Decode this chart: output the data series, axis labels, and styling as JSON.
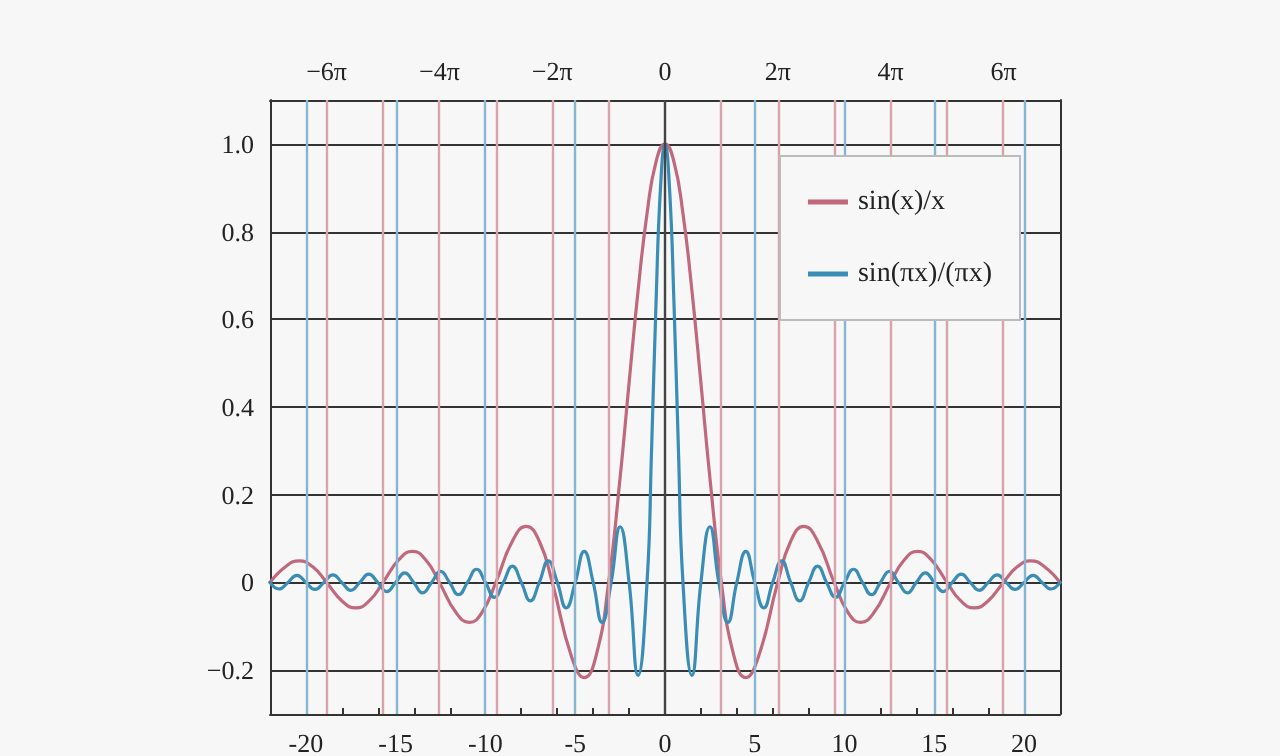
{
  "chart_data": {
    "type": "line",
    "xlim": [
      -22,
      22
    ],
    "ylim": [
      -0.3,
      1.1
    ],
    "xticks": [
      -20,
      -15,
      -10,
      -5,
      0,
      5,
      10,
      15,
      20
    ],
    "yticks": [
      {
        "value": -0.2,
        "label": "−0.2"
      },
      {
        "value": 0,
        "label": "0"
      },
      {
        "value": 0.2,
        "label": "0.2"
      },
      {
        "value": 0.4,
        "label": "0.4"
      },
      {
        "value": 0.6,
        "label": "0.6"
      },
      {
        "value": 0.8,
        "label": "0.8"
      },
      {
        "value": 1,
        "label": "1.0"
      }
    ],
    "x2lim": [
      -22,
      22
    ],
    "x2ticks": [
      {
        "value": -18.85,
        "label": "−6π"
      },
      {
        "value": -12.566,
        "label": "−4π"
      },
      {
        "value": -6.283,
        "label": "−2π"
      },
      {
        "value": 0,
        "label": "0"
      },
      {
        "value": 6.283,
        "label": "2π"
      },
      {
        "value": 12.566,
        "label": "4π"
      },
      {
        "value": 18.85,
        "label": "6π"
      }
    ],
    "grid": "y",
    "legend": "top right",
    "marker": "none",
    "line_style": "solid",
    "series": [
      {
        "name": "sin(x)/x",
        "color": "#c0687c",
        "x": [
          -22,
          -21.1,
          -20.37,
          -19.6,
          -18.85,
          -17.95,
          -17.22,
          -16.45,
          -15.71,
          -14.8,
          -14.07,
          -13.3,
          -12.57,
          -11.6,
          -10.9,
          -10.2,
          -9.42,
          -8.5,
          -7.73,
          -7,
          -6.28,
          -5.2,
          -4.49,
          -3.8,
          -3.14,
          -2.5,
          -2,
          -1.5,
          -1,
          -0.5,
          0,
          0.5,
          1,
          1.5,
          2,
          2.5,
          3.14,
          3.8,
          4.49,
          5.2,
          6.28,
          7,
          7.73,
          8.5,
          9.42,
          10.2,
          10.9,
          11.6,
          12.57,
          13.3,
          14.07,
          14.8,
          15.71,
          16.45,
          17.22,
          17.95,
          18.85,
          19.6,
          20.37,
          21.1,
          22
        ],
        "values": [
          0,
          0.037,
          0.049,
          0.035,
          0,
          -0.044,
          -0.058,
          -0.041,
          0,
          0.053,
          0.071,
          0.05,
          0,
          -0.071,
          -0.091,
          -0.069,
          0,
          0.094,
          0.128,
          0.094,
          0,
          -0.17,
          -0.217,
          -0.161,
          0,
          0.239,
          0.455,
          0.665,
          0.841,
          0.959,
          1,
          0.959,
          0.841,
          0.665,
          0.455,
          0.239,
          0,
          -0.161,
          -0.217,
          -0.17,
          0,
          0.094,
          0.128,
          0.094,
          0,
          -0.069,
          -0.091,
          -0.071,
          0,
          0.05,
          0.071,
          0.053,
          0,
          -0.041,
          -0.058,
          -0.044,
          0,
          0.035,
          0.049,
          0.037,
          0
        ]
      },
      {
        "name": "sin(πx)/(πx)",
        "color": "#3a8db5",
        "x": [
          -22,
          -21.5,
          -21,
          -20.5,
          -20,
          -19.5,
          -19,
          -18.5,
          -18,
          -17.5,
          -17,
          -16.5,
          -16,
          -15.5,
          -15,
          -14.5,
          -14,
          -13.5,
          -13,
          -12.5,
          -12,
          -11.5,
          -11,
          -10.5,
          -10,
          -9.5,
          -9,
          -8.5,
          -8,
          -7.5,
          -7,
          -6.5,
          -6,
          -5.5,
          -5,
          -4.5,
          -4,
          -3.5,
          -3,
          -2.5,
          -2,
          -1.5,
          -1,
          -0.75,
          -0.5,
          -0.25,
          0,
          0.25,
          0.5,
          0.75,
          1,
          1.5,
          2,
          2.5,
          3,
          3.5,
          4,
          4.5,
          5,
          5.5,
          6,
          6.5,
          7,
          7.5,
          8,
          8.5,
          9,
          9.5,
          10,
          10.5,
          11,
          11.5,
          12,
          12.5,
          13,
          13.5,
          14,
          14.5,
          15,
          15.5,
          16,
          16.5,
          17,
          17.5,
          18,
          18.5,
          19,
          19.5,
          20,
          20.5,
          21,
          21.5,
          22
        ],
        "values": [
          0,
          -0.015,
          0,
          0.016,
          0,
          -0.016,
          0,
          0.017,
          0,
          -0.018,
          0,
          0.019,
          0,
          -0.021,
          0,
          0.022,
          0,
          -0.024,
          0,
          0.025,
          0,
          -0.028,
          0,
          0.03,
          0,
          -0.034,
          0,
          0.037,
          0,
          -0.042,
          0,
          0.049,
          0,
          -0.058,
          0,
          0.071,
          0,
          -0.091,
          0,
          0.127,
          0,
          -0.212,
          0,
          0.3,
          0.637,
          0.9,
          1,
          0.9,
          0.637,
          0.3,
          0,
          -0.212,
          0,
          0.127,
          0,
          -0.091,
          0,
          0.071,
          0,
          -0.058,
          0,
          0.049,
          0,
          -0.042,
          0,
          0.037,
          0,
          -0.034,
          0,
          0.03,
          0,
          -0.028,
          0,
          0.025,
          0,
          -0.024,
          0,
          0.022,
          0,
          -0.021,
          0,
          0.019,
          0,
          -0.018,
          0,
          0.017,
          0,
          -0.016,
          0,
          0.016,
          0,
          -0.015,
          0
        ]
      }
    ],
    "ref_lines": [
      {
        "axis": "x",
        "value": -18.85,
        "color": "#d9a3ad"
      },
      {
        "axis": "x",
        "value": -15.71,
        "color": "#d9a3ad"
      },
      {
        "axis": "x",
        "value": -12.566,
        "color": "#d9a3ad"
      },
      {
        "axis": "x",
        "value": -9.425,
        "color": "#d9a3ad"
      },
      {
        "axis": "x",
        "value": -6.283,
        "color": "#d9a3ad"
      },
      {
        "axis": "x",
        "value": -3.142,
        "color": "#d9a3ad"
      },
      {
        "axis": "x",
        "value": 3.142,
        "color": "#d9a3ad"
      },
      {
        "axis": "x",
        "value": 6.283,
        "color": "#d9a3ad"
      },
      {
        "axis": "x",
        "value": 9.425,
        "color": "#d9a3ad"
      },
      {
        "axis": "x",
        "value": 12.566,
        "color": "#d9a3ad"
      },
      {
        "axis": "x",
        "value": 15.71,
        "color": "#d9a3ad"
      },
      {
        "axis": "x",
        "value": 18.85,
        "color": "#d9a3ad"
      },
      {
        "axis": "x",
        "value": -20,
        "color": "#86b6d2"
      },
      {
        "axis": "x",
        "value": -15,
        "color": "#86b6d2"
      },
      {
        "axis": "x",
        "value": -10,
        "color": "#86b6d2"
      },
      {
        "axis": "x",
        "value": -5,
        "color": "#86b6d2"
      },
      {
        "axis": "x",
        "value": 5,
        "color": "#86b6d2"
      },
      {
        "axis": "x",
        "value": 10,
        "color": "#86b6d2"
      },
      {
        "axis": "x",
        "value": 15,
        "color": "#86b6d2"
      },
      {
        "axis": "x",
        "value": 20,
        "color": "#86b6d2"
      },
      {
        "axis": "x",
        "value": 0,
        "color": "#444444"
      }
    ]
  }
}
